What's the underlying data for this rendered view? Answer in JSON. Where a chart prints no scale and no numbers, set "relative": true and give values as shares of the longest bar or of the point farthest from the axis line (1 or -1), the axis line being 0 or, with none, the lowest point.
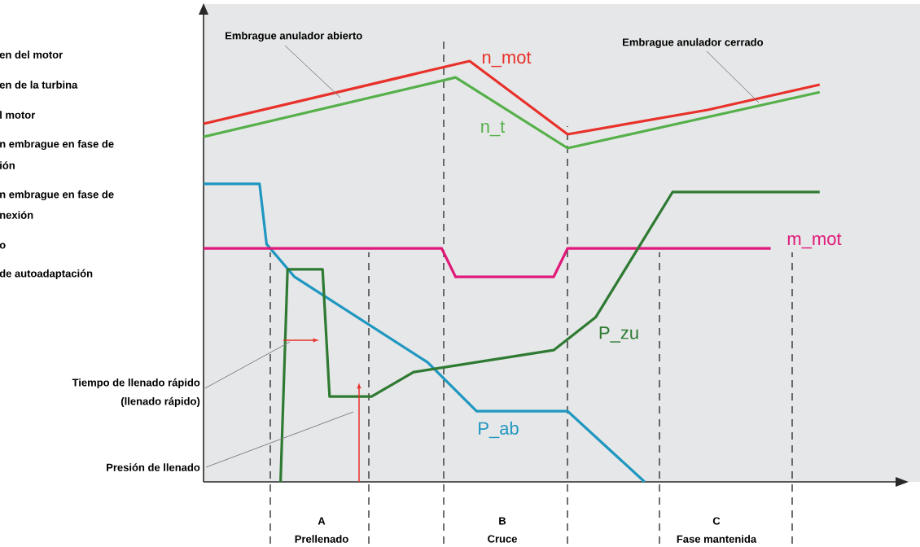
{
  "chart_data": {
    "type": "line",
    "relative": true,
    "categories": [
      null,
      null,
      null,
      null,
      null,
      null,
      null,
      null,
      null,
      null,
      null,
      null,
      null,
      null,
      null,
      null,
      null,
      null,
      null,
      null,
      null,
      null,
      null,
      null,
      null,
      null,
      null,
      null,
      null,
      null,
      null,
      null,
      null,
      null,
      null,
      null,
      null,
      null,
      null,
      null,
      null,
      null,
      null,
      null,
      null,
      null,
      null,
      null,
      null,
      null,
      null,
      null,
      null,
      null,
      null,
      null,
      null,
      null,
      null,
      null,
      null,
      null,
      null,
      null,
      null,
      null,
      null,
      null,
      null,
      null,
      null,
      null,
      null,
      null,
      null,
      null,
      null,
      null,
      null,
      null,
      null,
      null,
      null,
      null,
      null,
      null,
      null,
      null,
      null
    ],
    "series": [
      {
        "name": "n_mot",
        "color": "#e8312a",
        "values": [
          0.851,
          null,
          null,
          null,
          null,
          null,
          null,
          null,
          null,
          null,
          null,
          null,
          null,
          null,
          null,
          null,
          null,
          null,
          null,
          null,
          null,
          null,
          null,
          null,
          null,
          null,
          null,
          null,
          null,
          null,
          null,
          null,
          null,
          null,
          null,
          null,
          null,
          null,
          1.0,
          null,
          null,
          null,
          null,
          null,
          null,
          null,
          null,
          null,
          null,
          null,
          null,
          null,
          0.826,
          null,
          null,
          null,
          null,
          null,
          null,
          null,
          null,
          null,
          null,
          null,
          null,
          null,
          null,
          null,
          null,
          null,
          null,
          null,
          0.884,
          null,
          null,
          null,
          null,
          null,
          null,
          null,
          null,
          null,
          null,
          null,
          null,
          null,
          null,
          null,
          0.944
        ]
      },
      {
        "name": "n_t",
        "color": "#55b04a",
        "values": [
          0.82,
          null,
          null,
          null,
          null,
          null,
          null,
          null,
          null,
          null,
          null,
          null,
          null,
          null,
          null,
          null,
          null,
          null,
          null,
          null,
          null,
          null,
          null,
          null,
          null,
          null,
          null,
          null,
          null,
          null,
          null,
          null,
          null,
          null,
          null,
          null,
          0.961,
          null,
          null,
          null,
          null,
          null,
          null,
          null,
          null,
          null,
          null,
          null,
          null,
          null,
          null,
          null,
          0.793,
          null,
          null,
          null,
          null,
          null,
          null,
          null,
          null,
          null,
          null,
          null,
          null,
          null,
          null,
          null,
          null,
          null,
          null,
          null,
          null,
          null,
          null,
          null,
          null,
          null,
          null,
          null,
          null,
          null,
          null,
          null,
          null,
          null,
          null,
          null,
          0.926
        ]
      },
      {
        "name": "P_ab",
        "color": "#1f97c0",
        "values": [
          0.708,
          null,
          null,
          null,
          null,
          null,
          null,
          null,
          0.708,
          0.565,
          null,
          null,
          null,
          0.487,
          null,
          null,
          null,
          null,
          null,
          null,
          null,
          null,
          null,
          null,
          null,
          null,
          null,
          null,
          null,
          null,
          null,
          null,
          0.284,
          null,
          null,
          null,
          null,
          null,
          null,
          0.168,
          null,
          null,
          null,
          null,
          null,
          null,
          null,
          null,
          null,
          null,
          null,
          null,
          0.168,
          null,
          null,
          null,
          null,
          null,
          null,
          null,
          null,
          null,
          null,
          0,
          null,
          null,
          null,
          null,
          null,
          null,
          null,
          null,
          null,
          null,
          null,
          null,
          null,
          null,
          null,
          null,
          null,
          null,
          null,
          null,
          null,
          null,
          null,
          null,
          null
        ]
      },
      {
        "name": "m_mot",
        "color": "#e0197a",
        "values": [
          0.555,
          null,
          null,
          null,
          null,
          null,
          null,
          null,
          null,
          null,
          null,
          null,
          null,
          null,
          null,
          null,
          null,
          null,
          null,
          null,
          null,
          null,
          null,
          null,
          null,
          null,
          null,
          null,
          null,
          null,
          null,
          null,
          null,
          null,
          0.555,
          null,
          0.487,
          null,
          null,
          null,
          null,
          null,
          null,
          null,
          null,
          null,
          null,
          null,
          null,
          null,
          0.487,
          null,
          0.555,
          null,
          null,
          null,
          null,
          null,
          null,
          null,
          null,
          null,
          null,
          null,
          null,
          null,
          null,
          null,
          null,
          null,
          null,
          null,
          null,
          null,
          null,
          null,
          null,
          null,
          null,
          null,
          null,
          0.555,
          null,
          null,
          null,
          null,
          null,
          null,
          null
        ]
      },
      {
        "name": "P_zu",
        "color": "#2f7a33",
        "values": [
          null,
          null,
          null,
          null,
          null,
          null,
          null,
          null,
          null,
          null,
          null,
          0,
          0.505,
          null,
          null,
          null,
          null,
          0.505,
          0.203,
          null,
          null,
          null,
          null,
          null,
          0.203,
          null,
          null,
          null,
          null,
          null,
          0.261,
          null,
          null,
          null,
          null,
          null,
          null,
          null,
          null,
          null,
          null,
          null,
          null,
          null,
          null,
          null,
          null,
          null,
          null,
          null,
          0.313,
          null,
          null,
          null,
          null,
          null,
          0.391,
          null,
          null,
          null,
          null,
          null,
          null,
          null,
          null,
          null,
          null,
          0.689,
          null,
          null,
          null,
          null,
          null,
          null,
          null,
          null,
          null,
          null,
          null,
          null,
          null,
          null,
          null,
          null,
          null,
          null,
          null,
          null,
          0.689
        ]
      }
    ],
    "annotations": [
      "Embrague anulador abierto",
      "Embrague anulador cerrado",
      "Tiempo de llenado rápido",
      "(llenado rápido)",
      "Presión de llenado",
      "A",
      "Prellenado",
      "B",
      "Cruce",
      "C",
      "Fase mantenida",
      "en del motor",
      "en de la turbina",
      "l motor",
      "n embrague en fase de",
      "ión",
      "n embrague en fase de",
      "nexión",
      "o",
      "de autoadaptación"
    ]
  }
}
